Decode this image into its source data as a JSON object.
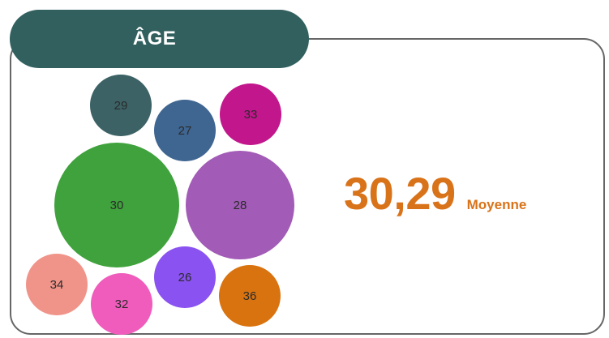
{
  "header": {
    "title": "ÂGE"
  },
  "chart_data": {
    "type": "bubble",
    "title": "ÂGE",
    "bubbles": [
      {
        "label": "29",
        "color": "#3c6266"
      },
      {
        "label": "27",
        "color": "#3f6591"
      },
      {
        "label": "33",
        "color": "#c2168c"
      },
      {
        "label": "30",
        "color": "#3fa23c"
      },
      {
        "label": "28",
        "color": "#a25bb6"
      },
      {
        "label": "26",
        "color": "#8a52f0"
      },
      {
        "label": "34",
        "color": "#f0948a"
      },
      {
        "label": "32",
        "color": "#f05cbc"
      },
      {
        "label": "36",
        "color": "#d9730f"
      }
    ]
  },
  "stat": {
    "value": "30,29",
    "label": "Moyenne",
    "color": "#d9731a"
  }
}
